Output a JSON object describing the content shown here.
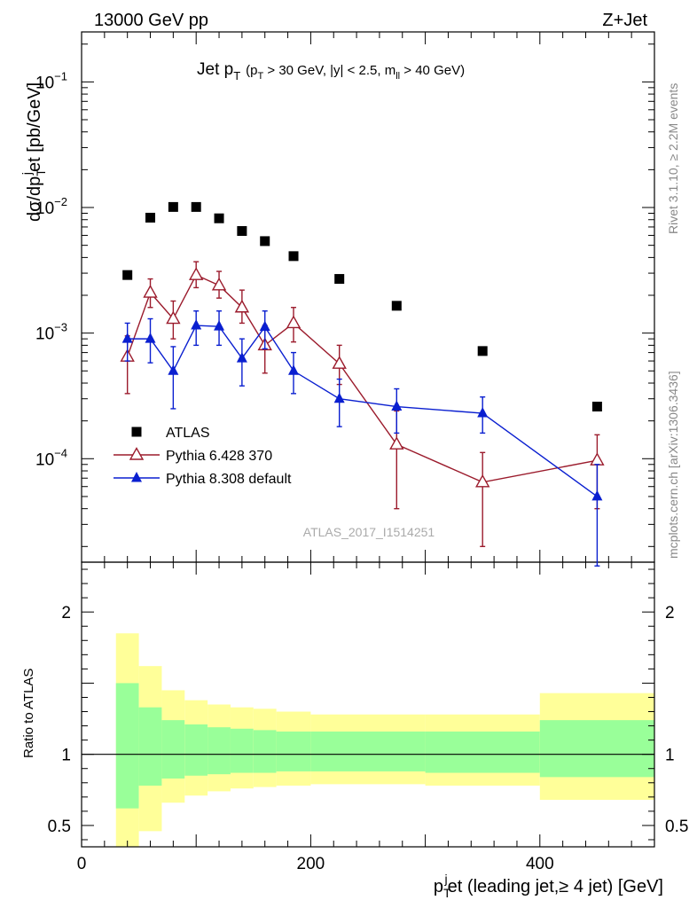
{
  "header": {
    "left": "13000 GeV pp",
    "right": "Z+Jet"
  },
  "plot_title": {
    "main_a": "Jet p",
    "main_sub": "T",
    "cond_a": "(p",
    "cond_sub1": "T",
    "cond_b": " > 30 GeV, |y| < 2.5, m",
    "cond_sub2": "ll",
    "cond_c": " > 40 GeV)"
  },
  "watermark": "ATLAS_2017_I1514251",
  "side_labels": {
    "top": "Rivet 3.1.10, ≥ 2.2M events",
    "bottom": "mcplots.cern.ch [arXiv:1306.3436]"
  },
  "y_label_main": {
    "a": "dσ/dp",
    "sub1": "T",
    "sup1": "j",
    "b": "et [pb/GeV]"
  },
  "y_label_ratio": "Ratio to ATLAS",
  "x_label": {
    "a": "p",
    "sub": "T",
    "sup": "j",
    "b": "et (leading jet,≥ 4 jet) [GeV]"
  },
  "chart_data": {
    "type": "scatter",
    "x_range": [
      0,
      500
    ],
    "y_range_main": [
      1.5e-05,
      0.25
    ],
    "y_scale_main": "log",
    "y_range_ratio": [
      0.35,
      2.35
    ],
    "x_ticks": [
      {
        "v": 0,
        "label": "0"
      },
      {
        "v": 200,
        "label": "200"
      },
      {
        "v": 400,
        "label": "400"
      }
    ],
    "y_ticks_main": [
      {
        "exp": -1,
        "label_base": "10",
        "label_exp": "−1"
      },
      {
        "exp": -2,
        "label_base": "10",
        "label_exp": "−2"
      },
      {
        "exp": -3,
        "label_base": "10",
        "label_exp": "−3"
      },
      {
        "exp": -4,
        "label_base": "10",
        "label_exp": "−4"
      }
    ],
    "y_ticks_ratio": [
      {
        "v": 2,
        "label": "2"
      },
      {
        "v": 1,
        "label": "1"
      },
      {
        "v": 0.5,
        "label": "0.5"
      }
    ],
    "legend_position": "lower-left",
    "series": [
      {
        "name": "ATLAS",
        "marker": "square",
        "color": "#000000",
        "points": [
          {
            "x": 40,
            "y": 0.0029
          },
          {
            "x": 60,
            "y": 0.0083
          },
          {
            "x": 80,
            "y": 0.0101
          },
          {
            "x": 100,
            "y": 0.0101
          },
          {
            "x": 120,
            "y": 0.0082
          },
          {
            "x": 140,
            "y": 0.0065
          },
          {
            "x": 160,
            "y": 0.0054
          },
          {
            "x": 185,
            "y": 0.0041
          },
          {
            "x": 225,
            "y": 0.0027
          },
          {
            "x": 275,
            "y": 0.00165
          },
          {
            "x": 350,
            "y": 0.00072
          },
          {
            "x": 450,
            "y": 0.00026
          }
        ]
      },
      {
        "name": "Pythia 6.428 370",
        "marker": "open-triangle",
        "color": "#9b1b2c",
        "points": [
          {
            "x": 40,
            "y": 0.00065,
            "lo": 0.00033,
            "hi": 0.00095
          },
          {
            "x": 60,
            "y": 0.0021,
            "lo": 0.0016,
            "hi": 0.0027
          },
          {
            "x": 80,
            "y": 0.0013,
            "lo": 0.0009,
            "hi": 0.0018
          },
          {
            "x": 100,
            "y": 0.0029,
            "lo": 0.0023,
            "hi": 0.0037
          },
          {
            "x": 120,
            "y": 0.0024,
            "lo": 0.0019,
            "hi": 0.0031
          },
          {
            "x": 140,
            "y": 0.0016,
            "lo": 0.0012,
            "hi": 0.0022
          },
          {
            "x": 160,
            "y": 0.0008,
            "lo": 0.00048,
            "hi": 0.00115
          },
          {
            "x": 185,
            "y": 0.0012,
            "lo": 0.00085,
            "hi": 0.0016
          },
          {
            "x": 225,
            "y": 0.00057,
            "lo": 0.00039,
            "hi": 0.0008
          },
          {
            "x": 275,
            "y": 0.00013,
            "lo": 4e-05,
            "hi": 0.00024
          },
          {
            "x": 350,
            "y": 6.5e-05,
            "lo": 2e-05,
            "hi": 0.000112
          },
          {
            "x": 450,
            "y": 9.7e-05,
            "lo": 4e-05,
            "hi": 0.000155
          }
        ]
      },
      {
        "name": "Pythia 8.308 default",
        "marker": "filled-triangle",
        "color": "#0a1fd0",
        "points": [
          {
            "x": 40,
            "y": 0.0009,
            "lo": 0.0006,
            "hi": 0.0012
          },
          {
            "x": 60,
            "y": 0.0009,
            "lo": 0.00058,
            "hi": 0.0013
          },
          {
            "x": 80,
            "y": 0.0005,
            "lo": 0.00025,
            "hi": 0.00078
          },
          {
            "x": 100,
            "y": 0.00115,
            "lo": 0.0008,
            "hi": 0.0015
          },
          {
            "x": 120,
            "y": 0.00113,
            "lo": 0.0008,
            "hi": 0.0015
          },
          {
            "x": 140,
            "y": 0.00063,
            "lo": 0.00038,
            "hi": 0.0009
          },
          {
            "x": 160,
            "y": 0.00112,
            "lo": 0.00075,
            "hi": 0.0015
          },
          {
            "x": 185,
            "y": 0.0005,
            "lo": 0.00033,
            "hi": 0.0007
          },
          {
            "x": 225,
            "y": 0.0003,
            "lo": 0.00018,
            "hi": 0.00043
          },
          {
            "x": 275,
            "y": 0.00026,
            "lo": 0.00016,
            "hi": 0.00036
          },
          {
            "x": 350,
            "y": 0.00023,
            "lo": 0.00016,
            "hi": 0.00031
          },
          {
            "x": 450,
            "y": 5e-05,
            "lo": 1.4e-05,
            "hi": 9e-05
          }
        ]
      }
    ],
    "ratio_bands": [
      {
        "x0": 30,
        "x1": 50,
        "in_lo": 0.62,
        "in_hi": 1.5,
        "out_lo": 0.35,
        "out_hi": 1.85
      },
      {
        "x0": 50,
        "x1": 70,
        "in_lo": 0.78,
        "in_hi": 1.33,
        "out_lo": 0.46,
        "out_hi": 1.62
      },
      {
        "x0": 70,
        "x1": 90,
        "in_lo": 0.83,
        "in_hi": 1.24,
        "out_lo": 0.66,
        "out_hi": 1.45
      },
      {
        "x0": 90,
        "x1": 110,
        "in_lo": 0.85,
        "in_hi": 1.21,
        "out_lo": 0.71,
        "out_hi": 1.38
      },
      {
        "x0": 110,
        "x1": 130,
        "in_lo": 0.86,
        "in_hi": 1.19,
        "out_lo": 0.74,
        "out_hi": 1.35
      },
      {
        "x0": 130,
        "x1": 150,
        "in_lo": 0.87,
        "in_hi": 1.18,
        "out_lo": 0.76,
        "out_hi": 1.33
      },
      {
        "x0": 150,
        "x1": 170,
        "in_lo": 0.87,
        "in_hi": 1.17,
        "out_lo": 0.77,
        "out_hi": 1.32
      },
      {
        "x0": 170,
        "x1": 200,
        "in_lo": 0.88,
        "in_hi": 1.16,
        "out_lo": 0.78,
        "out_hi": 1.3
      },
      {
        "x0": 200,
        "x1": 250,
        "in_lo": 0.88,
        "in_hi": 1.16,
        "out_lo": 0.79,
        "out_hi": 1.28
      },
      {
        "x0": 250,
        "x1": 300,
        "in_lo": 0.88,
        "in_hi": 1.16,
        "out_lo": 0.79,
        "out_hi": 1.28
      },
      {
        "x0": 300,
        "x1": 400,
        "in_lo": 0.87,
        "in_hi": 1.16,
        "out_lo": 0.78,
        "out_hi": 1.28
      },
      {
        "x0": 400,
        "x1": 500,
        "in_lo": 0.84,
        "in_hi": 1.24,
        "out_lo": 0.68,
        "out_hi": 1.43
      }
    ],
    "band_colors": {
      "inner": "#99ff99",
      "outer": "#ffff99"
    },
    "reference_line": 1
  }
}
